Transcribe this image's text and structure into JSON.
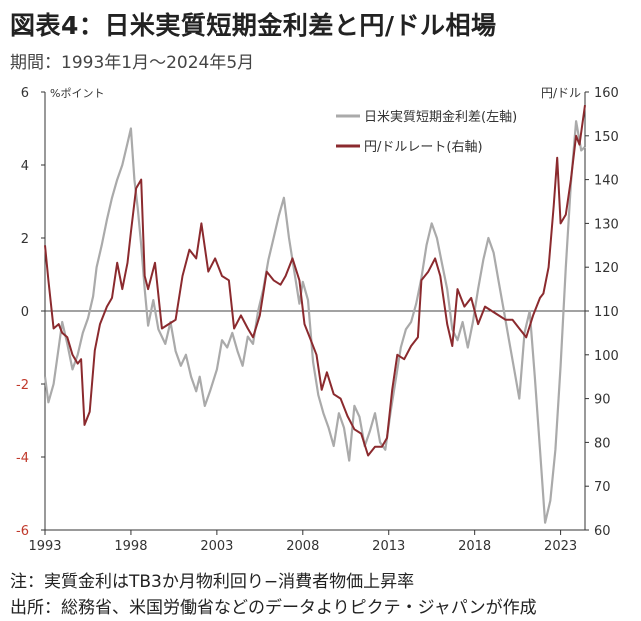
{
  "title": "図表4：日米実質短期金利差と円/ドル相場",
  "subtitle": "期間：1993年1月～2024年5月",
  "notes": {
    "note": "注：実質金利はTB3か月物利回り−消費者物価上昇率",
    "source": "出所：総務省、米国労働省などのデータよりピクテ・ジャパンが作成"
  },
  "colors": {
    "diff": "#aaaaaa",
    "yen": "#8b2a2e",
    "zero": "#444444",
    "neg": "#c0392b",
    "axis": "#333333"
  },
  "chart_data": {
    "type": "line",
    "y_left": {
      "label": "%ポイント",
      "ylim": [
        -6,
        6
      ],
      "ticks": [
        6,
        4,
        2,
        0,
        -2,
        -4,
        -6
      ]
    },
    "y_right": {
      "label": "円/ドル",
      "ylim": [
        60,
        160
      ],
      "ticks": [
        160,
        150,
        140,
        130,
        120,
        110,
        100,
        90,
        80,
        70,
        60
      ]
    },
    "x_range": [
      1993.0,
      2024.42
    ],
    "x_ticks": [
      "1993",
      "1998",
      "2003",
      "2008",
      "2013",
      "2018",
      "2023"
    ],
    "series": [
      {
        "name": "日米実質短期金利差(左軸)",
        "axis": "left",
        "x": [
          1993.0,
          1993.2,
          1993.5,
          1993.8,
          1994.0,
          1994.3,
          1994.6,
          1994.9,
          1995.2,
          1995.5,
          1995.8,
          1996.0,
          1996.3,
          1996.6,
          1996.9,
          1997.2,
          1997.5,
          1997.8,
          1998.0,
          1998.2,
          1998.4,
          1998.6,
          1998.8,
          1999.0,
          1999.3,
          1999.6,
          2000.0,
          2000.3,
          2000.6,
          2000.9,
          2001.2,
          2001.5,
          2001.8,
          2002.0,
          2002.3,
          2002.6,
          2003.0,
          2003.3,
          2003.6,
          2003.9,
          2004.2,
          2004.5,
          2004.8,
          2005.1,
          2005.4,
          2005.7,
          2006.0,
          2006.3,
          2006.6,
          2006.9,
          2007.2,
          2007.5,
          2007.8,
          2008.0,
          2008.3,
          2008.6,
          2008.9,
          2009.2,
          2009.5,
          2009.8,
          2010.1,
          2010.4,
          2010.7,
          2011.0,
          2011.3,
          2011.6,
          2011.9,
          2012.2,
          2012.5,
          2012.8,
          2013.1,
          2013.4,
          2013.7,
          2014.0,
          2014.3,
          2014.6,
          2014.9,
          2015.2,
          2015.5,
          2015.8,
          2016.1,
          2016.4,
          2016.7,
          2017.0,
          2017.3,
          2017.6,
          2017.9,
          2018.2,
          2018.5,
          2018.8,
          2019.1,
          2019.4,
          2019.7,
          2020.0,
          2020.3,
          2020.6,
          2020.9,
          2021.2,
          2021.5,
          2021.8,
          2022.1,
          2022.4,
          2022.7,
          2023.0,
          2023.3,
          2023.6,
          2023.9,
          2024.2,
          2024.42
        ],
        "values": [
          -1.8,
          -2.5,
          -2.0,
          -1.0,
          -0.3,
          -0.9,
          -1.6,
          -1.2,
          -0.6,
          -0.2,
          0.4,
          1.2,
          1.8,
          2.5,
          3.1,
          3.6,
          4.0,
          4.6,
          5.0,
          3.6,
          2.8,
          1.8,
          0.6,
          -0.4,
          0.3,
          -0.5,
          -0.9,
          -0.3,
          -1.1,
          -1.5,
          -1.2,
          -1.8,
          -2.2,
          -1.8,
          -2.6,
          -2.2,
          -1.6,
          -0.8,
          -1.0,
          -0.6,
          -1.1,
          -1.5,
          -0.7,
          -0.9,
          0.0,
          0.6,
          1.4,
          2.0,
          2.6,
          3.1,
          2.0,
          1.1,
          0.2,
          0.8,
          0.3,
          -1.4,
          -2.3,
          -2.8,
          -3.2,
          -3.7,
          -2.8,
          -3.2,
          -4.1,
          -2.6,
          -2.9,
          -3.7,
          -3.3,
          -2.8,
          -3.6,
          -3.8,
          -2.8,
          -1.9,
          -1.0,
          -0.5,
          -0.3,
          0.2,
          0.9,
          1.8,
          2.4,
          2.0,
          1.3,
          0.6,
          -0.5,
          -0.8,
          -0.3,
          -1.0,
          -0.3,
          0.6,
          1.4,
          2.0,
          1.6,
          0.8,
          0.0,
          -0.8,
          -1.6,
          -2.4,
          -0.6,
          0.0,
          -1.8,
          -3.8,
          -5.8,
          -5.2,
          -3.8,
          -1.5,
          1.2,
          3.5,
          5.2,
          4.4,
          4.5
        ]
      },
      {
        "name": "円/ドルレート(右軸)",
        "axis": "right",
        "x": [
          1993.0,
          1993.2,
          1993.5,
          1993.8,
          1994.0,
          1994.3,
          1994.6,
          1994.9,
          1995.1,
          1995.3,
          1995.6,
          1995.9,
          1996.2,
          1996.6,
          1996.9,
          1997.2,
          1997.5,
          1997.8,
          1998.0,
          1998.3,
          1998.6,
          1998.8,
          1999.0,
          1999.4,
          1999.8,
          2000.2,
          2000.6,
          2001.0,
          2001.4,
          2001.8,
          2002.1,
          2002.5,
          2002.9,
          2003.3,
          2003.7,
          2004.0,
          2004.4,
          2004.8,
          2005.1,
          2005.5,
          2005.9,
          2006.3,
          2006.7,
          2007.0,
          2007.4,
          2007.8,
          2008.1,
          2008.4,
          2008.8,
          2009.1,
          2009.4,
          2009.8,
          2010.2,
          2010.6,
          2011.0,
          2011.4,
          2011.8,
          2012.2,
          2012.6,
          2012.9,
          2013.2,
          2013.5,
          2013.9,
          2014.3,
          2014.7,
          2014.9,
          2015.3,
          2015.7,
          2016.0,
          2016.4,
          2016.7,
          2017.0,
          2017.4,
          2017.8,
          2018.2,
          2018.6,
          2019.0,
          2019.4,
          2019.8,
          2020.2,
          2020.6,
          2021.0,
          2021.4,
          2021.8,
          2022.0,
          2022.3,
          2022.6,
          2022.8,
          2023.0,
          2023.3,
          2023.6,
          2023.9,
          2024.1,
          2024.42
        ],
        "values": [
          125,
          117,
          106,
          107,
          105,
          104,
          100,
          98,
          99,
          84,
          87,
          101,
          107,
          111,
          113,
          121,
          115,
          121,
          128,
          138,
          140,
          118,
          115,
          121,
          106,
          107,
          108,
          118,
          124,
          122,
          130,
          119,
          122,
          118,
          117,
          106,
          109,
          106,
          104,
          109,
          119,
          117,
          116,
          118,
          122,
          117,
          107,
          104,
          100,
          92,
          96,
          91,
          90,
          86,
          83,
          82,
          77,
          79,
          79,
          81,
          92,
          100,
          99,
          102,
          104,
          117,
          119,
          122,
          118,
          107,
          102,
          115,
          111,
          113,
          107,
          111,
          110,
          109,
          108,
          108,
          106,
          104,
          109,
          113,
          114,
          120,
          134,
          145,
          130,
          132,
          140,
          150,
          148,
          157
        ]
      }
    ],
    "grid": false,
    "legend_position": "top-right"
  }
}
